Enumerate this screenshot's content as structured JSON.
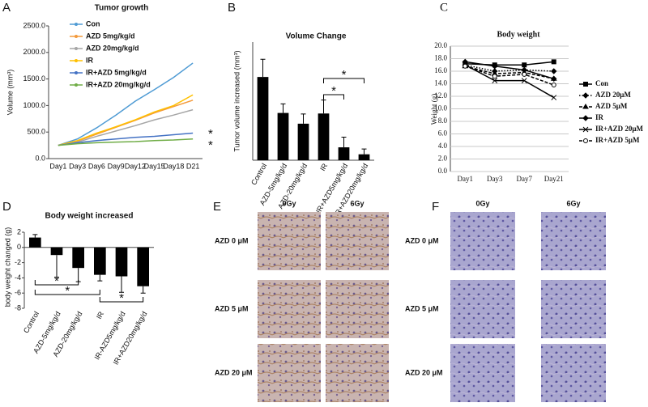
{
  "chart_data": [
    {
      "type": "line",
      "panel_label": "A",
      "title": "Tumor growth",
      "ylabel": "Volume (mm³)",
      "categories": [
        "Day1",
        "Day3",
        "Day6",
        "Day9",
        "Day12",
        "Day15",
        "Day18",
        "D21"
      ],
      "ylim": [
        0,
        2500
      ],
      "yticks": [
        {
          "value": 0,
          "label": "0.0"
        },
        {
          "value": 500,
          "label": "500.0"
        },
        {
          "value": 1000,
          "label": "1000.0"
        },
        {
          "value": 1500,
          "label": "1500.0"
        },
        {
          "value": 2000,
          "label": "2000.0"
        },
        {
          "value": 2500,
          "label": "2500.0"
        }
      ],
      "series": [
        {
          "name": "Con",
          "color": "#4f9bd4",
          "values": [
            250,
            370,
            580,
            820,
            1080,
            1300,
            1530,
            1800
          ]
        },
        {
          "name": "AZD 5mg/kg/d",
          "color": "#f39a3c",
          "values": [
            250,
            330,
            460,
            590,
            720,
            860,
            980,
            1100
          ]
        },
        {
          "name": "AZD 20mg/kg/d",
          "color": "#a6a6a6",
          "values": [
            250,
            310,
            420,
            520,
            620,
            730,
            820,
            920
          ]
        },
        {
          "name": "IR",
          "color": "#ffc000",
          "values": [
            250,
            340,
            480,
            600,
            730,
            880,
            1000,
            1200
          ]
        },
        {
          "name": "IR+AZD 5mg/kg/d",
          "color": "#4472c4",
          "values": [
            250,
            300,
            340,
            370,
            400,
            420,
            450,
            480
          ]
        },
        {
          "name": "IR+AZD 20mg/kg/d",
          "color": "#70ad47",
          "values": [
            250,
            280,
            300,
            310,
            320,
            340,
            350,
            370
          ]
        }
      ],
      "annotations": [
        "*",
        "*"
      ],
      "grid": false
    },
    {
      "type": "bar",
      "panel_label": "B",
      "title": "Volume Change",
      "ylabel": "Tumor volume increased (mm³)",
      "categories": [
        "Control",
        "AZD-5mg/kg/d",
        "AZD-20mg/kg/d",
        "IR",
        "IR+AZD5mg/kg/d",
        "IR+AZD20mg/kg/d"
      ],
      "values": [
        1550,
        880,
        680,
        870,
        240,
        110
      ],
      "errors": [
        330,
        170,
        180,
        250,
        190,
        100
      ],
      "color": "#000000",
      "ylim": [
        0,
        2200
      ],
      "annotations": [
        "*",
        "*"
      ],
      "grid": false
    },
    {
      "type": "line",
      "panel_label": "C",
      "title": "Body weight",
      "ylabel": "Weight (g)",
      "categories": [
        "Day1",
        "Day3",
        "Day7",
        "Day21"
      ],
      "ylim": [
        0,
        20
      ],
      "yticks": [
        {
          "value": 0,
          "label": "0.0"
        },
        {
          "value": 2,
          "label": "2.0"
        },
        {
          "value": 4,
          "label": "4.0"
        },
        {
          "value": 6,
          "label": "6.0"
        },
        {
          "value": 8,
          "label": "8.0"
        },
        {
          "value": 10,
          "label": "10.0"
        },
        {
          "value": 12,
          "label": "12.0"
        },
        {
          "value": 14,
          "label": "14.0"
        },
        {
          "value": 16,
          "label": "16.0"
        },
        {
          "value": 18,
          "label": "18.0"
        },
        {
          "value": 20,
          "label": "20.0"
        }
      ],
      "series": [
        {
          "name": "Con",
          "color": "#000000",
          "dash": "solid",
          "marker": "square",
          "values": [
            17.2,
            17.0,
            17.0,
            17.5
          ]
        },
        {
          "name": "AZD 20μM",
          "color": "#000000",
          "dash": "dotted",
          "marker": "diamond",
          "values": [
            17.0,
            16.0,
            16.2,
            16.0
          ]
        },
        {
          "name": "AZD 5μM",
          "color": "#000000",
          "dash": "dashed",
          "marker": "triangle",
          "values": [
            16.8,
            15.6,
            15.8,
            14.8
          ]
        },
        {
          "name": "IR",
          "color": "#000000",
          "dash": "solid",
          "marker": "diamond",
          "values": [
            17.5,
            16.8,
            16.2,
            14.8
          ]
        },
        {
          "name": "IR+AZD 20μM",
          "color": "#000000",
          "dash": "solid",
          "marker": "cross",
          "values": [
            17.0,
            14.5,
            14.5,
            11.8
          ]
        },
        {
          "name": "IR+AZD 5μM",
          "color": "#000000",
          "dash": "dashed",
          "marker": "circle",
          "values": [
            16.8,
            15.2,
            15.5,
            13.8
          ]
        }
      ],
      "grid": true
    },
    {
      "type": "bar",
      "panel_label": "D",
      "title": "Body weight increased",
      "ylabel": "body weight changed (g)",
      "categories": [
        "Control",
        "AZD-5mg/kg/d",
        "AZD-20mg/kg/d",
        "IR",
        "IR-AZD5mg/kg/d",
        "IR+AZD20mg/kg/d"
      ],
      "values": [
        1.3,
        -1.0,
        -2.7,
        -3.6,
        -3.8,
        -5.1
      ],
      "errors": [
        0.4,
        2.9,
        1.8,
        0.8,
        2.1,
        0.9
      ],
      "color": "#000000",
      "ylim": [
        -8,
        2
      ],
      "yticks": [
        2,
        0,
        -2,
        -4,
        -6,
        -8
      ],
      "annotations": [
        "*",
        "*",
        "*"
      ],
      "grid": false
    }
  ],
  "image_panels": [
    {
      "panel_label": "E",
      "columns": [
        "0Gy",
        "6Gy"
      ],
      "rows": [
        "AZD 0 μM",
        "AZD 5 μM",
        "AZD 20 μM"
      ]
    },
    {
      "panel_label": "F",
      "columns": [
        "0Gy",
        "6Gy"
      ],
      "rows": [
        "AZD 0 μM",
        "AZD 5 μM",
        "AZD 20 μM"
      ]
    }
  ]
}
